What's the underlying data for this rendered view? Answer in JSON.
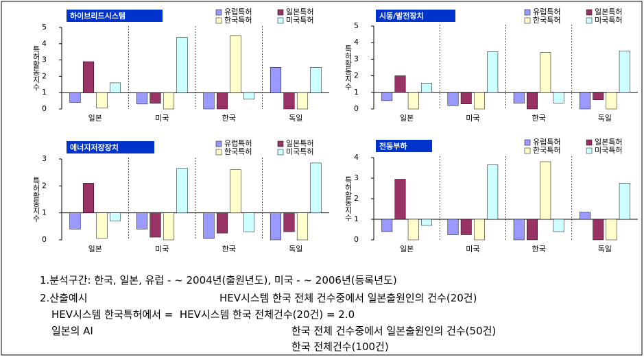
{
  "chart_data": [
    {
      "type": "bar",
      "title": "하이브리드시스템",
      "y_label": "특허활동지수",
      "categories": [
        "일본",
        "미국",
        "한국",
        "독일"
      ],
      "series": [
        {
          "name": "유럽특허",
          "color": "#9999ff",
          "values": [
            0.4,
            0.3,
            0.0,
            2.55
          ]
        },
        {
          "name": "일본특허",
          "color": "#993366",
          "values": [
            2.9,
            0.35,
            0.0,
            0.0
          ]
        },
        {
          "name": "한국특허",
          "color": "#ffffcc",
          "values": [
            0.05,
            0.0,
            4.5,
            0.0
          ]
        },
        {
          "name": "미국특허",
          "color": "#ccffff",
          "values": [
            1.6,
            4.4,
            0.6,
            2.55
          ]
        }
      ],
      "ylim": [
        0,
        5
      ],
      "yticks": [
        0,
        1,
        2,
        3,
        4,
        5
      ],
      "baseline": 1
    },
    {
      "type": "bar",
      "title": "시동/발전장치",
      "y_label": "특허활동지수",
      "categories": [
        "일본",
        "미국",
        "한국",
        "독일"
      ],
      "series": [
        {
          "name": "유럽특허",
          "color": "#9999ff",
          "values": [
            0.5,
            0.2,
            0.35,
            0.0
          ]
        },
        {
          "name": "일본특허",
          "color": "#993366",
          "values": [
            2.0,
            0.3,
            0.0,
            0.55
          ]
        },
        {
          "name": "한국특허",
          "color": "#ffffcc",
          "values": [
            0.0,
            0.0,
            3.4,
            0.0
          ]
        },
        {
          "name": "미국특허",
          "color": "#ccffff",
          "values": [
            1.55,
            3.45,
            0.35,
            3.5
          ]
        }
      ],
      "ylim": [
        0,
        5
      ],
      "yticks": [
        0,
        1,
        2,
        3,
        4,
        5
      ],
      "baseline": 1
    },
    {
      "type": "bar",
      "title": "에너지저장장치",
      "y_label": "특허활동지수",
      "categories": [
        "일본",
        "미국",
        "한국",
        "독일"
      ],
      "series": [
        {
          "name": "유럽특허",
          "color": "#9999ff",
          "values": [
            0.4,
            0.4,
            0.05,
            0.0
          ]
        },
        {
          "name": "일본특허",
          "color": "#993366",
          "values": [
            2.1,
            0.1,
            0.25,
            0.3
          ]
        },
        {
          "name": "한국특허",
          "color": "#ffffcc",
          "values": [
            0.05,
            0.0,
            2.6,
            0.0
          ]
        },
        {
          "name": "미국특허",
          "color": "#ccffff",
          "values": [
            0.7,
            2.65,
            0.3,
            2.85
          ]
        }
      ],
      "ylim": [
        0,
        3
      ],
      "yticks": [
        0,
        1,
        2,
        3
      ],
      "baseline": 1
    },
    {
      "type": "bar",
      "title": "전동부하",
      "y_label": "특허활동지수",
      "categories": [
        "일본",
        "미국",
        "한국",
        "독일"
      ],
      "series": [
        {
          "name": "유럽특허",
          "color": "#9999ff",
          "values": [
            0.4,
            0.25,
            0.0,
            1.35
          ]
        },
        {
          "name": "일본특허",
          "color": "#993366",
          "values": [
            2.95,
            0.25,
            0.0,
            0.0
          ]
        },
        {
          "name": "한국특허",
          "color": "#ffffcc",
          "values": [
            0.0,
            0.0,
            3.8,
            0.0
          ]
        },
        {
          "name": "미국특허",
          "color": "#ccffff",
          "values": [
            0.7,
            3.65,
            0.4,
            2.75
          ]
        }
      ],
      "ylim": [
        0,
        4
      ],
      "yticks": [
        0,
        1,
        2,
        3,
        4
      ],
      "baseline": 1
    }
  ],
  "notes": {
    "line1": "1.분석구간: 한국, 일본, 유럽 - ~ 2004년(출원년도), 미국 - ~ 2006년(등록년도)",
    "line2": [
      "2.산출예시",
      "HEV시스템 한국 전체 건수중에서 일본출원인의 건수(20건)"
    ],
    "line3": "HEV시스템 한국특허에서 =  HEV시스템 한국 전체건수(20건) = 2.0",
    "line4": [
      "일본의 AI",
      "한국 전체 건수중에서 일본출원인의 건수(50건)"
    ],
    "line5": "한국 전체건수(100건)"
  }
}
